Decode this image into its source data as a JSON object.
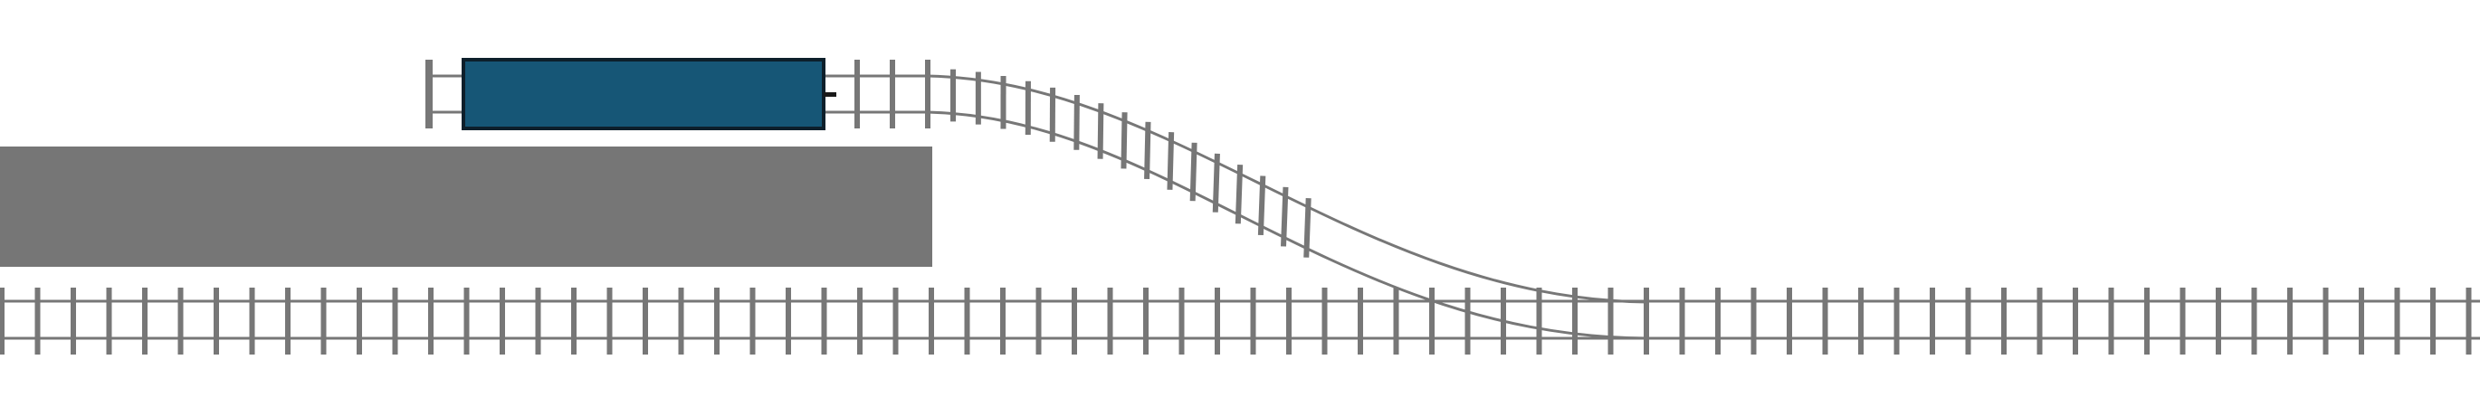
{
  "scene": {
    "colors": {
      "background": "#ffffff",
      "track": "#777777",
      "platform": "#767676",
      "wagon_fill": "#165676",
      "wagon_outline": "#0d1f2b",
      "coupler": "#1a1a1a"
    },
    "tracks": [
      {
        "id": "main-line",
        "kind": "straight"
      },
      {
        "id": "siding",
        "kind": "straight-with-buffer-stop"
      },
      {
        "id": "turnout-curve",
        "kind": "curve"
      }
    ],
    "platform": {
      "id": "platform"
    },
    "wagons": [
      {
        "id": "wagon-1",
        "icon": "rail-wagon-icon",
        "track": "siding",
        "coupler": "right"
      }
    ]
  }
}
